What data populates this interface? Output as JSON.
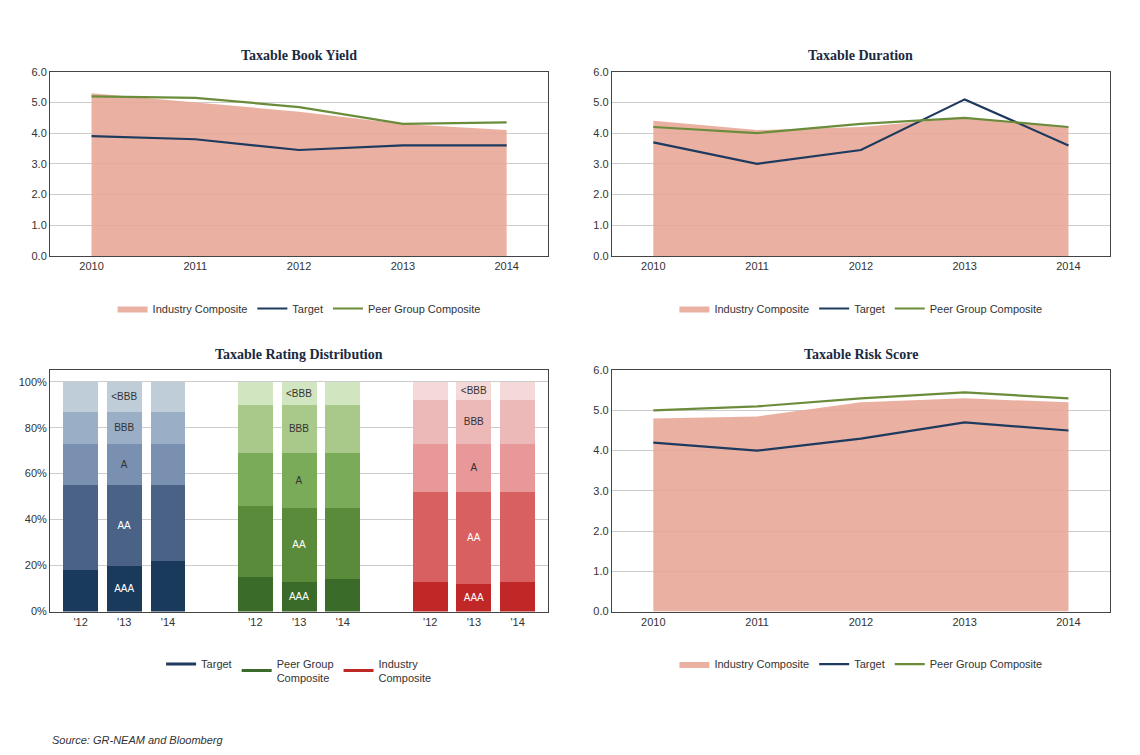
{
  "source": "Source: GR-NEAM and Bloomberg",
  "chart_data": [
    {
      "type": "line",
      "title": "Taxable Book Yield",
      "x": [
        2010,
        2011,
        2012,
        2013,
        2014
      ],
      "series": [
        {
          "name": "Industry Composite",
          "type": "area",
          "color": "#e8a898",
          "values": [
            5.3,
            5.0,
            4.7,
            4.3,
            4.1
          ]
        },
        {
          "name": "Target",
          "type": "line",
          "color": "#1e3a5f",
          "values": [
            3.9,
            3.8,
            3.45,
            3.6,
            3.6
          ]
        },
        {
          "name": "Peer Group Composite",
          "type": "line",
          "color": "#6b8c3a",
          "values": [
            5.2,
            5.15,
            4.85,
            4.3,
            4.35
          ]
        }
      ],
      "xlim": [
        2009.6,
        2014.4
      ],
      "xticks": [
        2010,
        2011,
        2012,
        2013,
        2014
      ],
      "ylim": [
        0,
        6.0
      ],
      "yticks": [
        {
          "value": 0,
          "label": "0.0"
        },
        {
          "value": 1,
          "label": "1.0"
        },
        {
          "value": 2,
          "label": "2.0"
        },
        {
          "value": 3,
          "label": "3.0"
        },
        {
          "value": 4,
          "label": "4.0"
        },
        {
          "value": 5,
          "label": "5.0"
        },
        {
          "value": 6,
          "label": "6.0"
        }
      ],
      "grid": "y",
      "legend": "bottom"
    },
    {
      "type": "line",
      "title": "Taxable Duration",
      "x": [
        2010,
        2011,
        2012,
        2013,
        2014
      ],
      "series": [
        {
          "name": "Industry Composite",
          "type": "area",
          "color": "#e8a898",
          "values": [
            4.4,
            4.1,
            4.2,
            4.5,
            4.2
          ]
        },
        {
          "name": "Target",
          "type": "line",
          "color": "#1e3a5f",
          "values": [
            3.7,
            3.0,
            3.45,
            5.1,
            3.6
          ]
        },
        {
          "name": "Peer Group Composite",
          "type": "line",
          "color": "#6b8c3a",
          "values": [
            4.2,
            4.0,
            4.3,
            4.5,
            4.2
          ]
        }
      ],
      "xlim": [
        2009.6,
        2014.4
      ],
      "xticks": [
        2010,
        2011,
        2012,
        2013,
        2014
      ],
      "ylim": [
        0,
        6.0
      ],
      "yticks": [
        {
          "value": 0,
          "label": "0.0"
        },
        {
          "value": 1,
          "label": "1.0"
        },
        {
          "value": 2,
          "label": "2.0"
        },
        {
          "value": 3,
          "label": "3.0"
        },
        {
          "value": 4,
          "label": "4.0"
        },
        {
          "value": 5,
          "label": "5.0"
        },
        {
          "value": 6,
          "label": "6.0"
        }
      ],
      "grid": "y",
      "legend": "bottom"
    },
    {
      "type": "bar",
      "stacked": true,
      "title": "Taxable Rating Distribution",
      "categories": [
        "'12",
        "'13",
        "'14"
      ],
      "groups": [
        {
          "name": "Target",
          "color": "#1e3a5f",
          "series": [
            {
              "name": "AAA",
              "color": "#1a3a5c",
              "values": [
                0.18,
                0.2,
                0.22
              ]
            },
            {
              "name": "AA",
              "color": "#4a6285",
              "values": [
                0.37,
                0.35,
                0.33
              ]
            },
            {
              "name": "A",
              "color": "#7a90b0",
              "values": [
                0.18,
                0.18,
                0.18
              ]
            },
            {
              "name": "BBB",
              "color": "#9aaec5",
              "values": [
                0.14,
                0.14,
                0.14
              ]
            },
            {
              "name": "<BBB",
              "color": "#bfcdd8",
              "values": [
                0.13,
                0.13,
                0.13
              ]
            }
          ]
        },
        {
          "name": "Peer Group\nComposite",
          "color": "#3a6b28",
          "series": [
            {
              "name": "AAA",
              "color": "#3a6b28",
              "values": [
                0.15,
                0.13,
                0.14
              ]
            },
            {
              "name": "AA",
              "color": "#5a8b3a",
              "values": [
                0.31,
                0.32,
                0.31
              ]
            },
            {
              "name": "A",
              "color": "#7aab58",
              "values": [
                0.23,
                0.24,
                0.24
              ]
            },
            {
              "name": "BBB",
              "color": "#a8c98a",
              "values": [
                0.21,
                0.21,
                0.21
              ]
            },
            {
              "name": "<BBB",
              "color": "#d0e5c0",
              "values": [
                0.1,
                0.1,
                0.1
              ]
            }
          ]
        },
        {
          "name": "Industry\nComposite",
          "color": "#c02828",
          "series": [
            {
              "name": "AAA",
              "color": "#c02828",
              "values": [
                0.13,
                0.12,
                0.13
              ]
            },
            {
              "name": "AA",
              "color": "#d86060",
              "values": [
                0.39,
                0.4,
                0.39
              ]
            },
            {
              "name": "A",
              "color": "#e89898",
              "values": [
                0.21,
                0.21,
                0.21
              ]
            },
            {
              "name": "BBB",
              "color": "#edb8b8",
              "values": [
                0.19,
                0.19,
                0.19
              ]
            },
            {
              "name": "<BBB",
              "color": "#f5d8d8",
              "values": [
                0.08,
                0.08,
                0.08
              ]
            }
          ]
        }
      ],
      "ylim": [
        0,
        1.05
      ],
      "yticks": [
        {
          "value": 0,
          "label": "0%"
        },
        {
          "value": 0.2,
          "label": "20%"
        },
        {
          "value": 0.4,
          "label": "40%"
        },
        {
          "value": 0.6,
          "label": "60%"
        },
        {
          "value": 0.8,
          "label": "80%"
        },
        {
          "value": 1.0,
          "label": "100%"
        }
      ],
      "grid": "y",
      "legend": "bottom"
    },
    {
      "type": "line",
      "title": "Taxable Risk Score",
      "x": [
        2010,
        2011,
        2012,
        2013,
        2014
      ],
      "series": [
        {
          "name": "Industry Composite",
          "type": "area",
          "color": "#e8a898",
          "values": [
            4.8,
            4.85,
            5.2,
            5.3,
            5.2
          ]
        },
        {
          "name": "Target",
          "type": "line",
          "color": "#1e3a5f",
          "values": [
            4.2,
            4.0,
            4.3,
            4.7,
            4.5
          ]
        },
        {
          "name": "Peer Group Composite",
          "type": "line",
          "color": "#6b8c3a",
          "values": [
            5.0,
            5.1,
            5.3,
            5.45,
            5.3
          ]
        }
      ],
      "xlim": [
        2009.6,
        2014.4
      ],
      "xticks": [
        2010,
        2011,
        2012,
        2013,
        2014
      ],
      "ylim": [
        0,
        6.0
      ],
      "yticks": [
        {
          "value": 0,
          "label": "0.0"
        },
        {
          "value": 1,
          "label": "1.0"
        },
        {
          "value": 2,
          "label": "2.0"
        },
        {
          "value": 3,
          "label": "3.0"
        },
        {
          "value": 4,
          "label": "4.0"
        },
        {
          "value": 5,
          "label": "5.0"
        },
        {
          "value": 6,
          "label": "6.0"
        }
      ],
      "grid": "y",
      "legend": "bottom"
    }
  ]
}
